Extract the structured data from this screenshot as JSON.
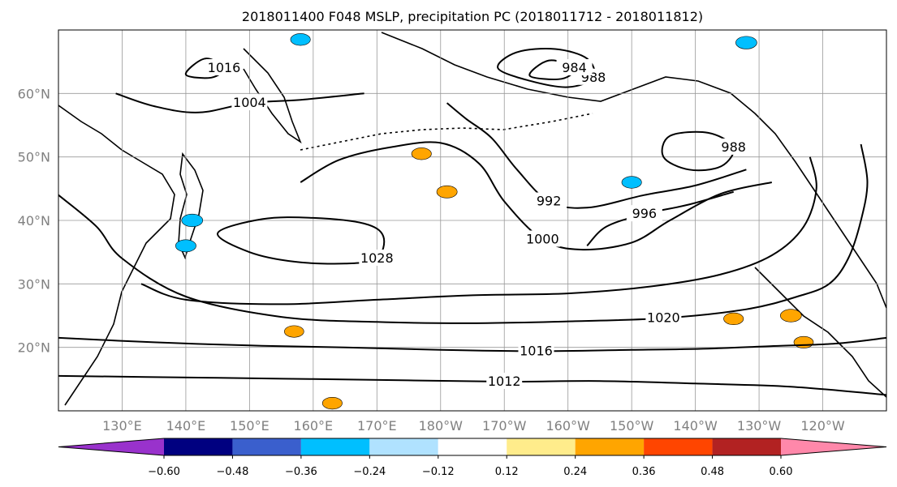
{
  "chart_data": {
    "type": "map-contour",
    "title": "2018011400 F048 MSLP, precipitation PC (2018011712 - 2018011812)",
    "lon_range": [
      120,
      250
    ],
    "lat_range": [
      10,
      70
    ],
    "grid": true,
    "xticks": [
      {
        "lon": 130,
        "label": "130°E"
      },
      {
        "lon": 140,
        "label": "140°E"
      },
      {
        "lon": 150,
        "label": "150°E"
      },
      {
        "lon": 160,
        "label": "160°E"
      },
      {
        "lon": 170,
        "label": "170°E"
      },
      {
        "lon": 180,
        "label": "180°W"
      },
      {
        "lon": 190,
        "label": "170°W"
      },
      {
        "lon": 200,
        "label": "160°W"
      },
      {
        "lon": 210,
        "label": "150°W"
      },
      {
        "lon": 220,
        "label": "140°W"
      },
      {
        "lon": 230,
        "label": "130°W"
      },
      {
        "lon": 240,
        "label": "120°W"
      }
    ],
    "yticks": [
      {
        "lat": 20,
        "label": "20°N"
      },
      {
        "lat": 30,
        "label": "30°N"
      },
      {
        "lat": 40,
        "label": "40°N"
      },
      {
        "lat": 50,
        "label": "50°N"
      },
      {
        "lat": 60,
        "label": "60°N"
      }
    ],
    "isobars": [
      {
        "value": 1012,
        "label": "1012",
        "points": [
          [
            120,
            15.5
          ],
          [
            145,
            15.2
          ],
          [
            160,
            15
          ],
          [
            175,
            14.8
          ],
          [
            190,
            14.6
          ],
          [
            205,
            14.7
          ],
          [
            220,
            14.3
          ],
          [
            235,
            13.8
          ],
          [
            250,
            12.5
          ]
        ]
      },
      {
        "value": 1016,
        "label": "1016",
        "points": [
          [
            120,
            21.5
          ],
          [
            135,
            20.8
          ],
          [
            150,
            20.3
          ],
          [
            165,
            20
          ],
          [
            180,
            19.6
          ],
          [
            195,
            19.4
          ],
          [
            210,
            19.6
          ],
          [
            222,
            19.8
          ],
          [
            232,
            20.2
          ],
          [
            242,
            20.6
          ],
          [
            250,
            21.5
          ]
        ]
      },
      {
        "value": 1020,
        "label": "1020",
        "points": [
          [
            120,
            44
          ],
          [
            126,
            39
          ],
          [
            130,
            34
          ],
          [
            140,
            28
          ],
          [
            155,
            24.8
          ],
          [
            170,
            24
          ],
          [
            185,
            23.8
          ],
          [
            200,
            24.1
          ],
          [
            215,
            24.6
          ],
          [
            228,
            26
          ],
          [
            236,
            28
          ],
          [
            241,
            30
          ],
          [
            244,
            34
          ],
          [
            246,
            40
          ],
          [
            247,
            46
          ],
          [
            246,
            52
          ]
        ]
      },
      {
        "value": 1024,
        "label": "",
        "points": [
          [
            133,
            30
          ],
          [
            140,
            27.5
          ],
          [
            155,
            26.8
          ],
          [
            170,
            27.5
          ],
          [
            185,
            28.2
          ],
          [
            200,
            28.5
          ],
          [
            213,
            29.6
          ],
          [
            224,
            31.5
          ],
          [
            232,
            34.5
          ],
          [
            237,
            39
          ],
          [
            239,
            45
          ],
          [
            238,
            50
          ]
        ]
      },
      {
        "value": 1028,
        "label": "1028",
        "closed": true,
        "points": [
          [
            145,
            38
          ],
          [
            150,
            35
          ],
          [
            157,
            33.5
          ],
          [
            165,
            33.2
          ],
          [
            170,
            34
          ],
          [
            171,
            37.5
          ],
          [
            168,
            39.5
          ],
          [
            160,
            40.4
          ],
          [
            152,
            40.2
          ]
        ]
      },
      {
        "value": 1000,
        "label": "1000",
        "points": [
          [
            158,
            46
          ],
          [
            164,
            49.5
          ],
          [
            172,
            51.5
          ],
          [
            180,
            52.2
          ],
          [
            186,
            49
          ],
          [
            190,
            43
          ],
          [
            196,
            37
          ],
          [
            202,
            35.4
          ],
          [
            210,
            36.5
          ],
          [
            216,
            40
          ],
          [
            224,
            44.2
          ],
          [
            232,
            46
          ]
        ]
      },
      {
        "value": 996,
        "label": "996",
        "points": [
          [
            203,
            36
          ],
          [
            206,
            39
          ],
          [
            212,
            41
          ],
          [
            219,
            42.5
          ],
          [
            226,
            44.5
          ]
        ]
      },
      {
        "value": 992,
        "label": "992",
        "points": [
          [
            181,
            58.5
          ],
          [
            184,
            56
          ],
          [
            188,
            53
          ],
          [
            192,
            48
          ],
          [
            197,
            43
          ],
          [
            203,
            42
          ],
          [
            212,
            44
          ],
          [
            220,
            45.5
          ],
          [
            228,
            48
          ]
        ]
      },
      {
        "value": 988,
        "label": "988",
        "closed": true,
        "points": [
          [
            189,
            64
          ],
          [
            194,
            62
          ],
          [
            200,
            61
          ],
          [
            204,
            62.5
          ],
          [
            203,
            65.5
          ],
          [
            198,
            67
          ],
          [
            192,
            66.5
          ]
        ]
      },
      {
        "value": 984,
        "label": "984",
        "closed": true,
        "points": [
          [
            194,
            62.8
          ],
          [
            199,
            62.3
          ],
          [
            201,
            64
          ],
          [
            197,
            65.2
          ]
        ]
      },
      {
        "value": 988,
        "label": "988",
        "closed": true,
        "points": [
          [
            215,
            50
          ],
          [
            219,
            48
          ],
          [
            224,
            48.5
          ],
          [
            226,
            51.5
          ],
          [
            222,
            53.8
          ],
          [
            216,
            53.3
          ]
        ]
      },
      {
        "value": 1004,
        "label": "1004",
        "points": [
          [
            129,
            60
          ],
          [
            135,
            58
          ],
          [
            142,
            57
          ],
          [
            150,
            58.5
          ],
          [
            158,
            59
          ],
          [
            168,
            60
          ]
        ]
      },
      {
        "value": 1016,
        "label": "1016",
        "closed": true,
        "points": [
          [
            140,
            63
          ],
          [
            144,
            62.5
          ],
          [
            146,
            64
          ],
          [
            143,
            65.5
          ]
        ]
      }
    ],
    "precipitation_pc": [
      {
        "value": 0.26,
        "lon": 177,
        "lat": 50.5
      },
      {
        "value": 0.28,
        "lon": 181,
        "lat": 44.5
      },
      {
        "value": 0.26,
        "lon": 226,
        "lat": 24.5
      },
      {
        "value": 0.3,
        "lon": 235,
        "lat": 25.0
      },
      {
        "value": 0.25,
        "lon": 157,
        "lat": 22.5
      },
      {
        "value": 0.26,
        "lon": 163,
        "lat": 11.2
      },
      {
        "value": 0.25,
        "lon": 237,
        "lat": 20.8
      },
      {
        "value": -0.3,
        "lon": 141,
        "lat": 40.0
      },
      {
        "value": -0.28,
        "lon": 140,
        "lat": 36.0
      },
      {
        "value": -0.26,
        "lon": 210,
        "lat": 46.0
      },
      {
        "value": -0.3,
        "lon": 228,
        "lat": 68.0
      },
      {
        "value": -0.26,
        "lon": 158,
        "lat": 68.5
      }
    ]
  },
  "colorbar": {
    "ticks": [
      "−0.60",
      "−0.48",
      "−0.36",
      "−0.24",
      "−0.12",
      "0.12",
      "0.24",
      "0.36",
      "0.48",
      "0.60"
    ],
    "colors": [
      "#9932cc",
      "#000080",
      "#3a5fcd",
      "#00bfff",
      "#b0e2ff",
      "#ffffff",
      "#ffec8b",
      "#ffa500",
      "#ff4500",
      "#b22222",
      "#ff88aa"
    ]
  }
}
